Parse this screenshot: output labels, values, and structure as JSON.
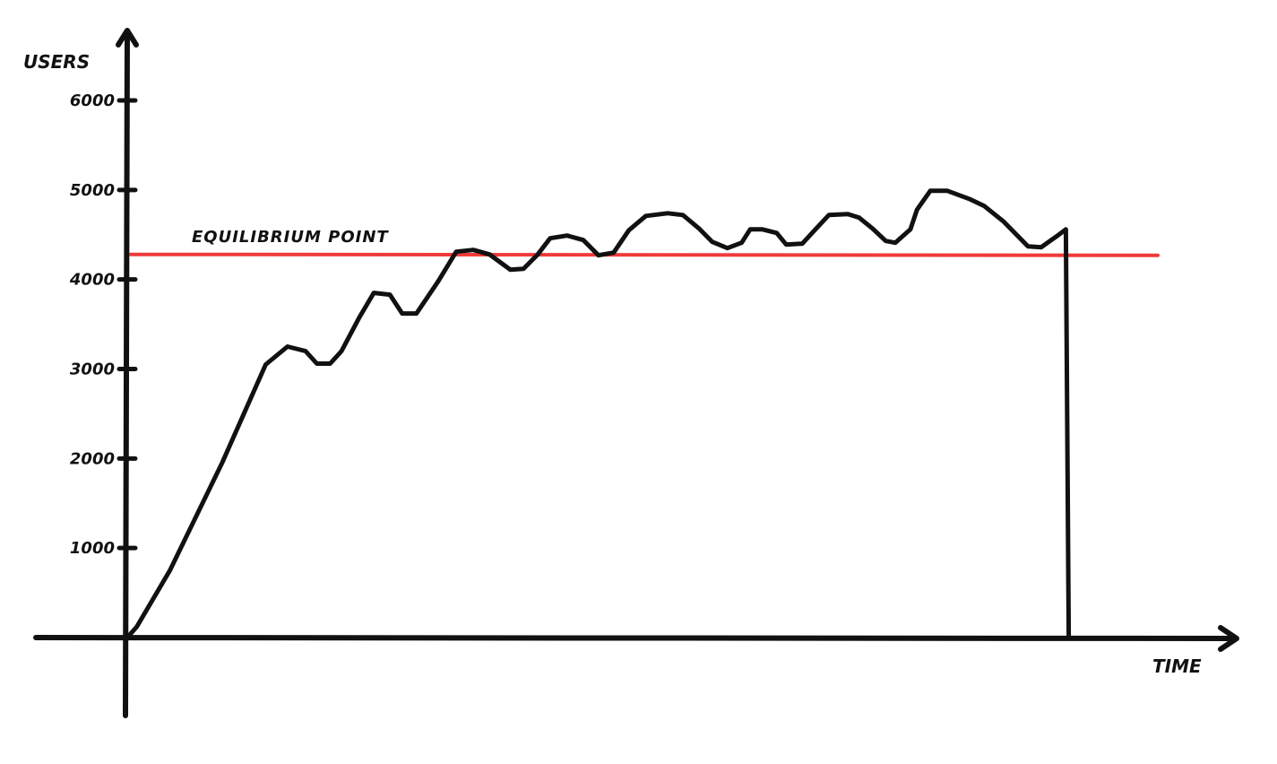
{
  "chart_data": {
    "type": "line",
    "title": "",
    "xlabel": "TIME",
    "ylabel": "USERS",
    "ylim": [
      0,
      6000
    ],
    "yticks": [
      1000,
      2000,
      3000,
      4000,
      5000,
      6000
    ],
    "ytick_labels": [
      "1000",
      "2000",
      "3000",
      "4000",
      "5000",
      "6000"
    ],
    "xlim": [
      0,
      100
    ],
    "grid": false,
    "series": [
      {
        "name": "",
        "color": "#111111",
        "points": [
          [
            0,
            0
          ],
          [
            1,
            120
          ],
          [
            4.5,
            750
          ],
          [
            10,
            1950
          ],
          [
            14.6,
            3050
          ],
          [
            16.9,
            3250
          ],
          [
            18.8,
            3200
          ],
          [
            20,
            3060
          ],
          [
            21.4,
            3060
          ],
          [
            22.6,
            3200
          ],
          [
            24.5,
            3580
          ],
          [
            26,
            3850
          ],
          [
            27.7,
            3830
          ],
          [
            29,
            3620
          ],
          [
            30.5,
            3620
          ],
          [
            32.8,
            3980
          ],
          [
            34.7,
            4310
          ],
          [
            36.5,
            4330
          ],
          [
            38.2,
            4280
          ],
          [
            40.4,
            4110
          ],
          [
            41.8,
            4120
          ],
          [
            43.3,
            4280
          ],
          [
            44.6,
            4460
          ],
          [
            46.4,
            4490
          ],
          [
            48.1,
            4440
          ],
          [
            49.7,
            4270
          ],
          [
            51.3,
            4300
          ],
          [
            52.9,
            4550
          ],
          [
            54.7,
            4710
          ],
          [
            57,
            4740
          ],
          [
            58.6,
            4720
          ],
          [
            60.3,
            4570
          ],
          [
            61.7,
            4420
          ],
          [
            63.3,
            4350
          ],
          [
            64.8,
            4410
          ],
          [
            65.7,
            4560
          ],
          [
            67,
            4560
          ],
          [
            68.5,
            4520
          ],
          [
            69.5,
            4390
          ],
          [
            71.2,
            4400
          ],
          [
            72.5,
            4550
          ],
          [
            74,
            4720
          ],
          [
            76,
            4730
          ],
          [
            77.2,
            4690
          ],
          [
            78.6,
            4570
          ],
          [
            80,
            4430
          ],
          [
            81,
            4410
          ],
          [
            82.6,
            4560
          ],
          [
            83.3,
            4780
          ],
          [
            84.7,
            4990
          ],
          [
            86.5,
            4990
          ],
          [
            88.8,
            4900
          ],
          [
            90.4,
            4820
          ],
          [
            92.4,
            4650
          ],
          [
            95,
            4370
          ],
          [
            96.4,
            4360
          ],
          [
            98,
            4480
          ],
          [
            99,
            4560
          ],
          [
            99.3,
            0
          ]
        ]
      }
    ],
    "reference_lines": [
      {
        "label": "EQUILIBRIUM POINT",
        "y": 4280,
        "color": "#f03a3a"
      }
    ]
  }
}
